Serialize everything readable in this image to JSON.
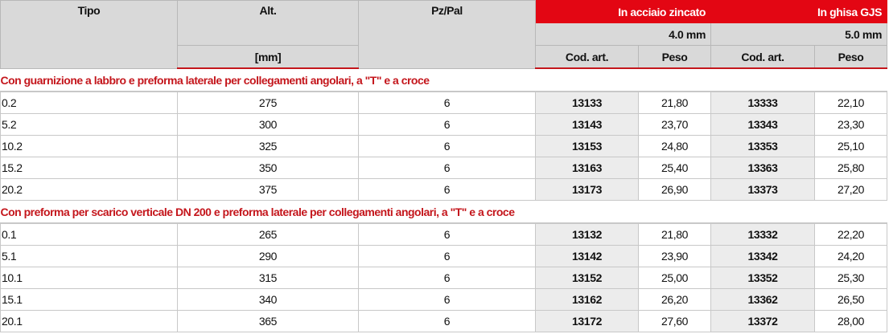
{
  "header": {
    "tipo": "Tipo",
    "alt": "Alt.",
    "alt_unit": "[mm]",
    "pz_pal": "Pz/Pal",
    "group1": "In acciaio zincato",
    "group1_thickness": "4.0 mm",
    "group2": "In ghisa GJS",
    "group2_thickness": "5.0 mm",
    "cod": "Cod. art.",
    "peso": "Peso"
  },
  "sections": [
    {
      "title": "Con guarnizione a labbro e preforma laterale per collegamenti angolari, a \"T\" e a croce",
      "rows": [
        {
          "tipo": "0.2",
          "alt": "275",
          "pz": "6",
          "cod1": "13133",
          "peso1": "21,80",
          "cod2": "13333",
          "peso2": "22,10"
        },
        {
          "tipo": "5.2",
          "alt": "300",
          "pz": "6",
          "cod1": "13143",
          "peso1": "23,70",
          "cod2": "13343",
          "peso2": "23,30"
        },
        {
          "tipo": "10.2",
          "alt": "325",
          "pz": "6",
          "cod1": "13153",
          "peso1": "24,80",
          "cod2": "13353",
          "peso2": "25,10"
        },
        {
          "tipo": "15.2",
          "alt": "350",
          "pz": "6",
          "cod1": "13163",
          "peso1": "25,40",
          "cod2": "13363",
          "peso2": "25,80"
        },
        {
          "tipo": "20.2",
          "alt": "375",
          "pz": "6",
          "cod1": "13173",
          "peso1": "26,90",
          "cod2": "13373",
          "peso2": "27,20"
        }
      ]
    },
    {
      "title": "Con preforma per scarico verticale DN 200 e preforma laterale per collegamenti angolari, a \"T\" e a croce",
      "rows": [
        {
          "tipo": "0.1",
          "alt": "265",
          "pz": "6",
          "cod1": "13132",
          "peso1": "21,80",
          "cod2": "13332",
          "peso2": "22,20"
        },
        {
          "tipo": "5.1",
          "alt": "290",
          "pz": "6",
          "cod1": "13142",
          "peso1": "23,90",
          "cod2": "13342",
          "peso2": "24,20"
        },
        {
          "tipo": "10.1",
          "alt": "315",
          "pz": "6",
          "cod1": "13152",
          "peso1": "25,00",
          "cod2": "13352",
          "peso2": "25,30"
        },
        {
          "tipo": "15.1",
          "alt": "340",
          "pz": "6",
          "cod1": "13162",
          "peso1": "26,20",
          "cod2": "13362",
          "peso2": "26,50"
        },
        {
          "tipo": "20.1",
          "alt": "365",
          "pz": "6",
          "cod1": "13172",
          "peso1": "27,60",
          "cod2": "13372",
          "peso2": "28,00"
        }
      ]
    }
  ],
  "colors": {
    "accent": "#e30613",
    "header_bg": "#d9d9d9",
    "code_bg": "#ececec"
  }
}
